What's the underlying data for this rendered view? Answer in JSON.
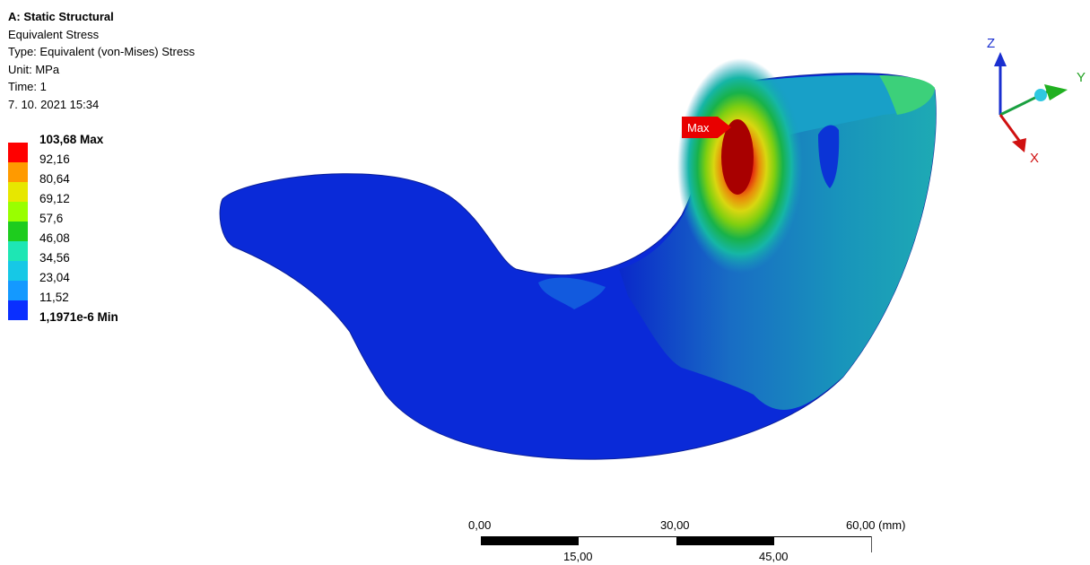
{
  "info": {
    "analysis": "A: Static Structural",
    "result": "Equivalent Stress",
    "type": "Type: Equivalent (von-Mises) Stress",
    "unit": "Unit: MPa",
    "time_prefix": "Time: ",
    "time_value": "1",
    "date": "7. 10. 2021 15:34"
  },
  "legend": {
    "max_label": "103,68 Max",
    "values": [
      "92,16",
      "80,64",
      "69,12",
      "57,6",
      "46,08",
      "34,56",
      "23,04",
      "11,52"
    ],
    "min_label": "1,1971e-6 Min",
    "colors": [
      "#ff0000",
      "#ff9a00",
      "#e7e700",
      "#99ff00",
      "#1ecc1e",
      "#1ee6b4",
      "#16c8e6",
      "#1499ff",
      "#0a2fff"
    ]
  },
  "probe": {
    "max_tag": "Max"
  },
  "triad": {
    "z": "Z",
    "y": "Y",
    "x": "X"
  },
  "scale": {
    "top": [
      "0,00",
      "30,00",
      "60,00 (mm)"
    ],
    "bottom": [
      "15,00",
      "45,00"
    ]
  }
}
